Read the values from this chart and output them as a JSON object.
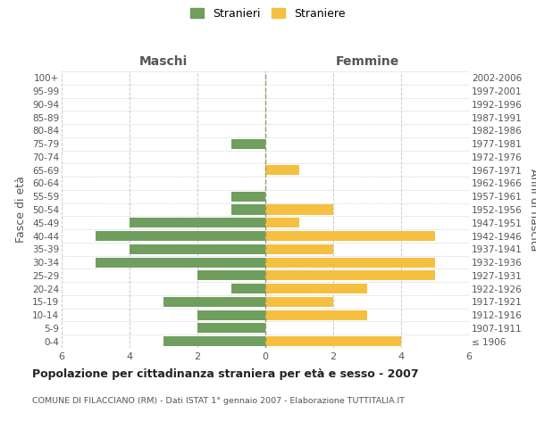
{
  "age_groups": [
    "100+",
    "95-99",
    "90-94",
    "85-89",
    "80-84",
    "75-79",
    "70-74",
    "65-69",
    "60-64",
    "55-59",
    "50-54",
    "45-49",
    "40-44",
    "35-39",
    "30-34",
    "25-29",
    "20-24",
    "15-19",
    "10-14",
    "5-9",
    "0-4"
  ],
  "birth_years": [
    "≤ 1906",
    "1907-1911",
    "1912-1916",
    "1917-1921",
    "1922-1926",
    "1927-1931",
    "1932-1936",
    "1937-1941",
    "1942-1946",
    "1947-1951",
    "1952-1956",
    "1957-1961",
    "1962-1966",
    "1967-1971",
    "1972-1976",
    "1977-1981",
    "1982-1986",
    "1987-1991",
    "1992-1996",
    "1997-2001",
    "2002-2006"
  ],
  "maschi": [
    0,
    0,
    0,
    0,
    0,
    1,
    0,
    0,
    0,
    1,
    1,
    4,
    5,
    4,
    5,
    2,
    1,
    3,
    2,
    2,
    3
  ],
  "femmine": [
    0,
    0,
    0,
    0,
    0,
    0,
    0,
    1,
    0,
    0,
    2,
    1,
    5,
    2,
    5,
    5,
    3,
    2,
    3,
    0,
    4
  ],
  "maschi_color": "#6f9e5e",
  "femmine_color": "#f5c040",
  "title": "Popolazione per cittadinanza straniera per età e sesso - 2007",
  "subtitle": "COMUNE DI FILACCIANO (RM) - Dati ISTAT 1° gennaio 2007 - Elaborazione TUTTITALIA.IT",
  "ylabel_left": "Fasce di età",
  "ylabel_right": "Anni di nascita",
  "xlabel_left": "Maschi",
  "xlabel_right": "Femmine",
  "legend_stranieri": "Stranieri",
  "legend_straniere": "Straniere",
  "xlim": 6,
  "background_color": "#ffffff",
  "grid_color": "#cccccc",
  "bar_height": 0.75
}
